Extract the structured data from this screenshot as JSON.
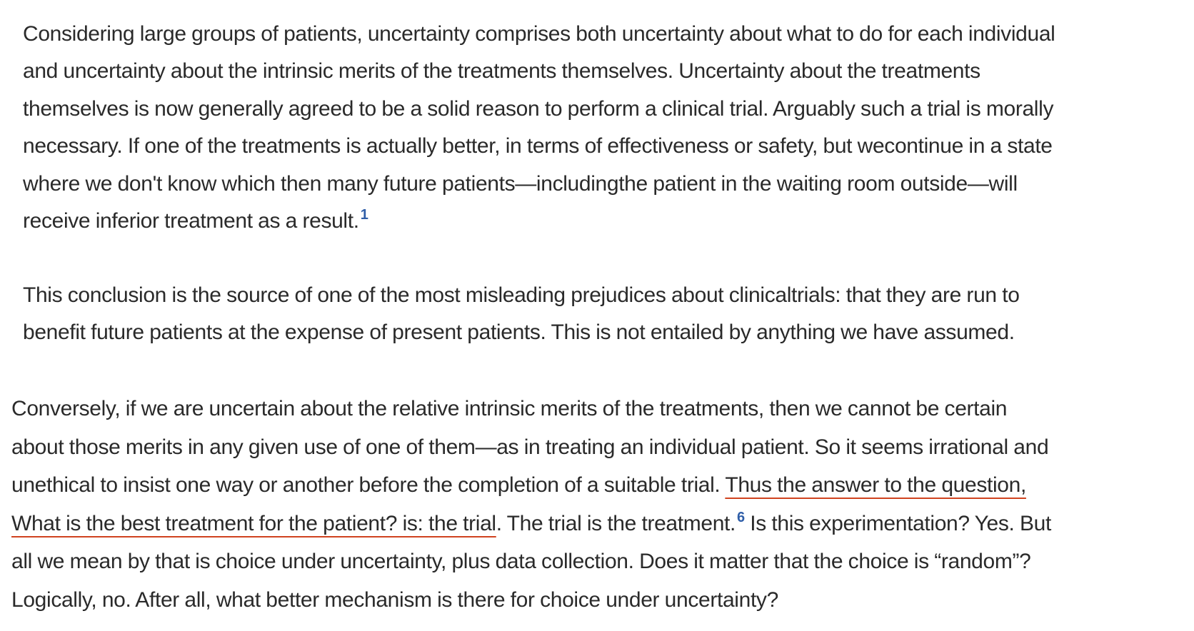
{
  "paragraph1": {
    "lines": [
      "Considering large groups of patients, uncertainty comprises both uncertainty about what to do for each individual",
      "and uncertainty about the intrinsic merits of the treatments themselves. Uncertainty about the treatments",
      "themselves is now generally agreed to be a solid reason to perform a clinical trial. Arguably such a trial is morally",
      "necessary. If one of the treatments is actually better, in terms of effectiveness or safety, but wecontinue in a state",
      "where we don't know which then many future patients—includingthe patient in the waiting room outside—will",
      "receive inferior treatment as a result."
    ],
    "citation": "1"
  },
  "paragraph2": {
    "lines": [
      "This conclusion is the source of one of the most misleading prejudices about clinicaltrials: that they are run to",
      "benefit future patients at the expense of present patients. This is not entailed by anything we have assumed."
    ]
  },
  "paragraph3": {
    "line1": "Conversely, if we are uncertain about the relative intrinsic merits of the treatments, then we cannot be certain",
    "line2": "about those merits in any given use of one of them—as in treating an individual patient. So it seems irrational and",
    "line3_plain": "unethical to insist one way or another before the completion of a suitable trial. ",
    "line3_highlight": "Thus the answer to the question,",
    "line4_highlight": "What is the best treatment for the patient? is: the trial",
    "line4_plain": ". The trial is the treatment.",
    "citation": "6",
    "line4_tail": " Is this experimentation? Yes. But",
    "line5": "all we mean by that is choice under uncertainty, plus data collection. Does it matter that the choice is “random”?",
    "line6": "Logically, no. After all, what better mechanism is there for choice under uncertainty?"
  },
  "colors": {
    "text": "#2a2a2a",
    "citation": "#2f5ea8",
    "highlight_underline": "#d0431f"
  }
}
